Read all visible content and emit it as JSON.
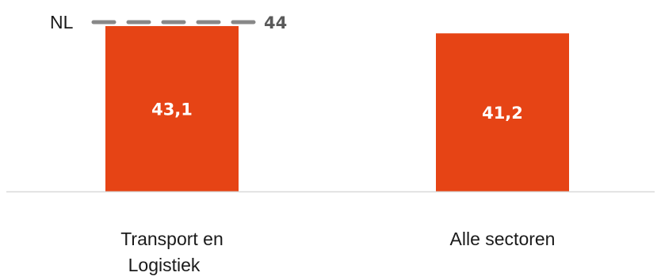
{
  "chart_data": {
    "type": "bar",
    "categories": [
      "Transport en Logistiek",
      "Alle sectoren"
    ],
    "category_lines": [
      [
        "Transport en",
        "Logistiek"
      ],
      [
        "Alle sectoren"
      ]
    ],
    "values": [
      43.1,
      41.2
    ],
    "value_labels": [
      "43,1",
      "41,2"
    ],
    "reference_line": {
      "label": "NL",
      "value": 44,
      "value_label": "44",
      "style": "dashed",
      "color": "#888888"
    },
    "ylim": [
      0,
      45
    ],
    "grid": false,
    "title": "",
    "xlabel": "",
    "ylabel": "",
    "bar_color": "#e64415",
    "axis_color": "#d9d9d9"
  }
}
